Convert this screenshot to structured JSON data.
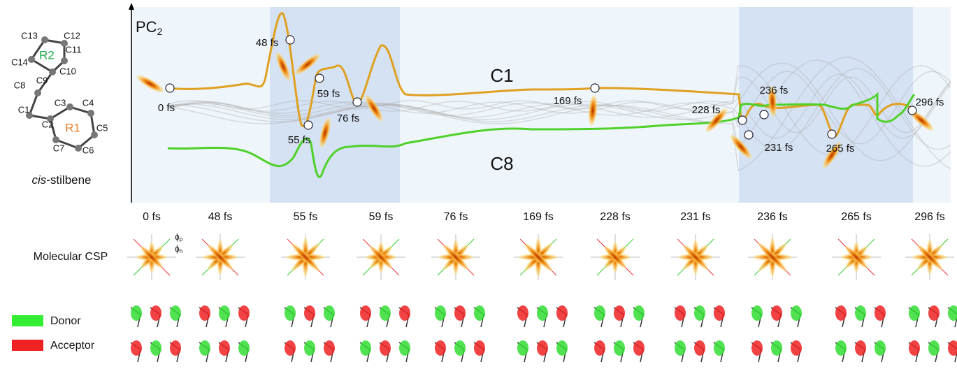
{
  "molecule": {
    "atoms": [
      "C13",
      "C12",
      "C11",
      "C14",
      "C10",
      "C9",
      "C8",
      "C3",
      "C4",
      "C1",
      "C2",
      "C5",
      "C7",
      "C6"
    ],
    "rings": [
      "R2",
      "R1"
    ],
    "name_italic": "cis",
    "name_rest": "-stilbene"
  },
  "plot": {
    "axis_label": "PC",
    "axis_label_sub": "2",
    "curves": [
      "C1",
      "C8"
    ],
    "markers": [
      "0 fs",
      "48 fs",
      "55 fs",
      "59 fs",
      "76 fs",
      "169 fs",
      "228 fs",
      "231 fs",
      "236 fs",
      "265 fs",
      "296 fs"
    ]
  },
  "panel": {
    "times": [
      "0 fs",
      "48 fs",
      "55 fs",
      "59 fs",
      "76 fs",
      "169 fs",
      "228 fs",
      "231 fs",
      "236 fs",
      "265 fs",
      "296 fs"
    ],
    "row_label": "Molecular CSP",
    "phi_p": "ϕ",
    "phi_p_sub": "p",
    "phi_h": "ϕ",
    "phi_h_sub": "h"
  },
  "legend": {
    "donor": "Donor",
    "acceptor": "Acceptor"
  }
}
